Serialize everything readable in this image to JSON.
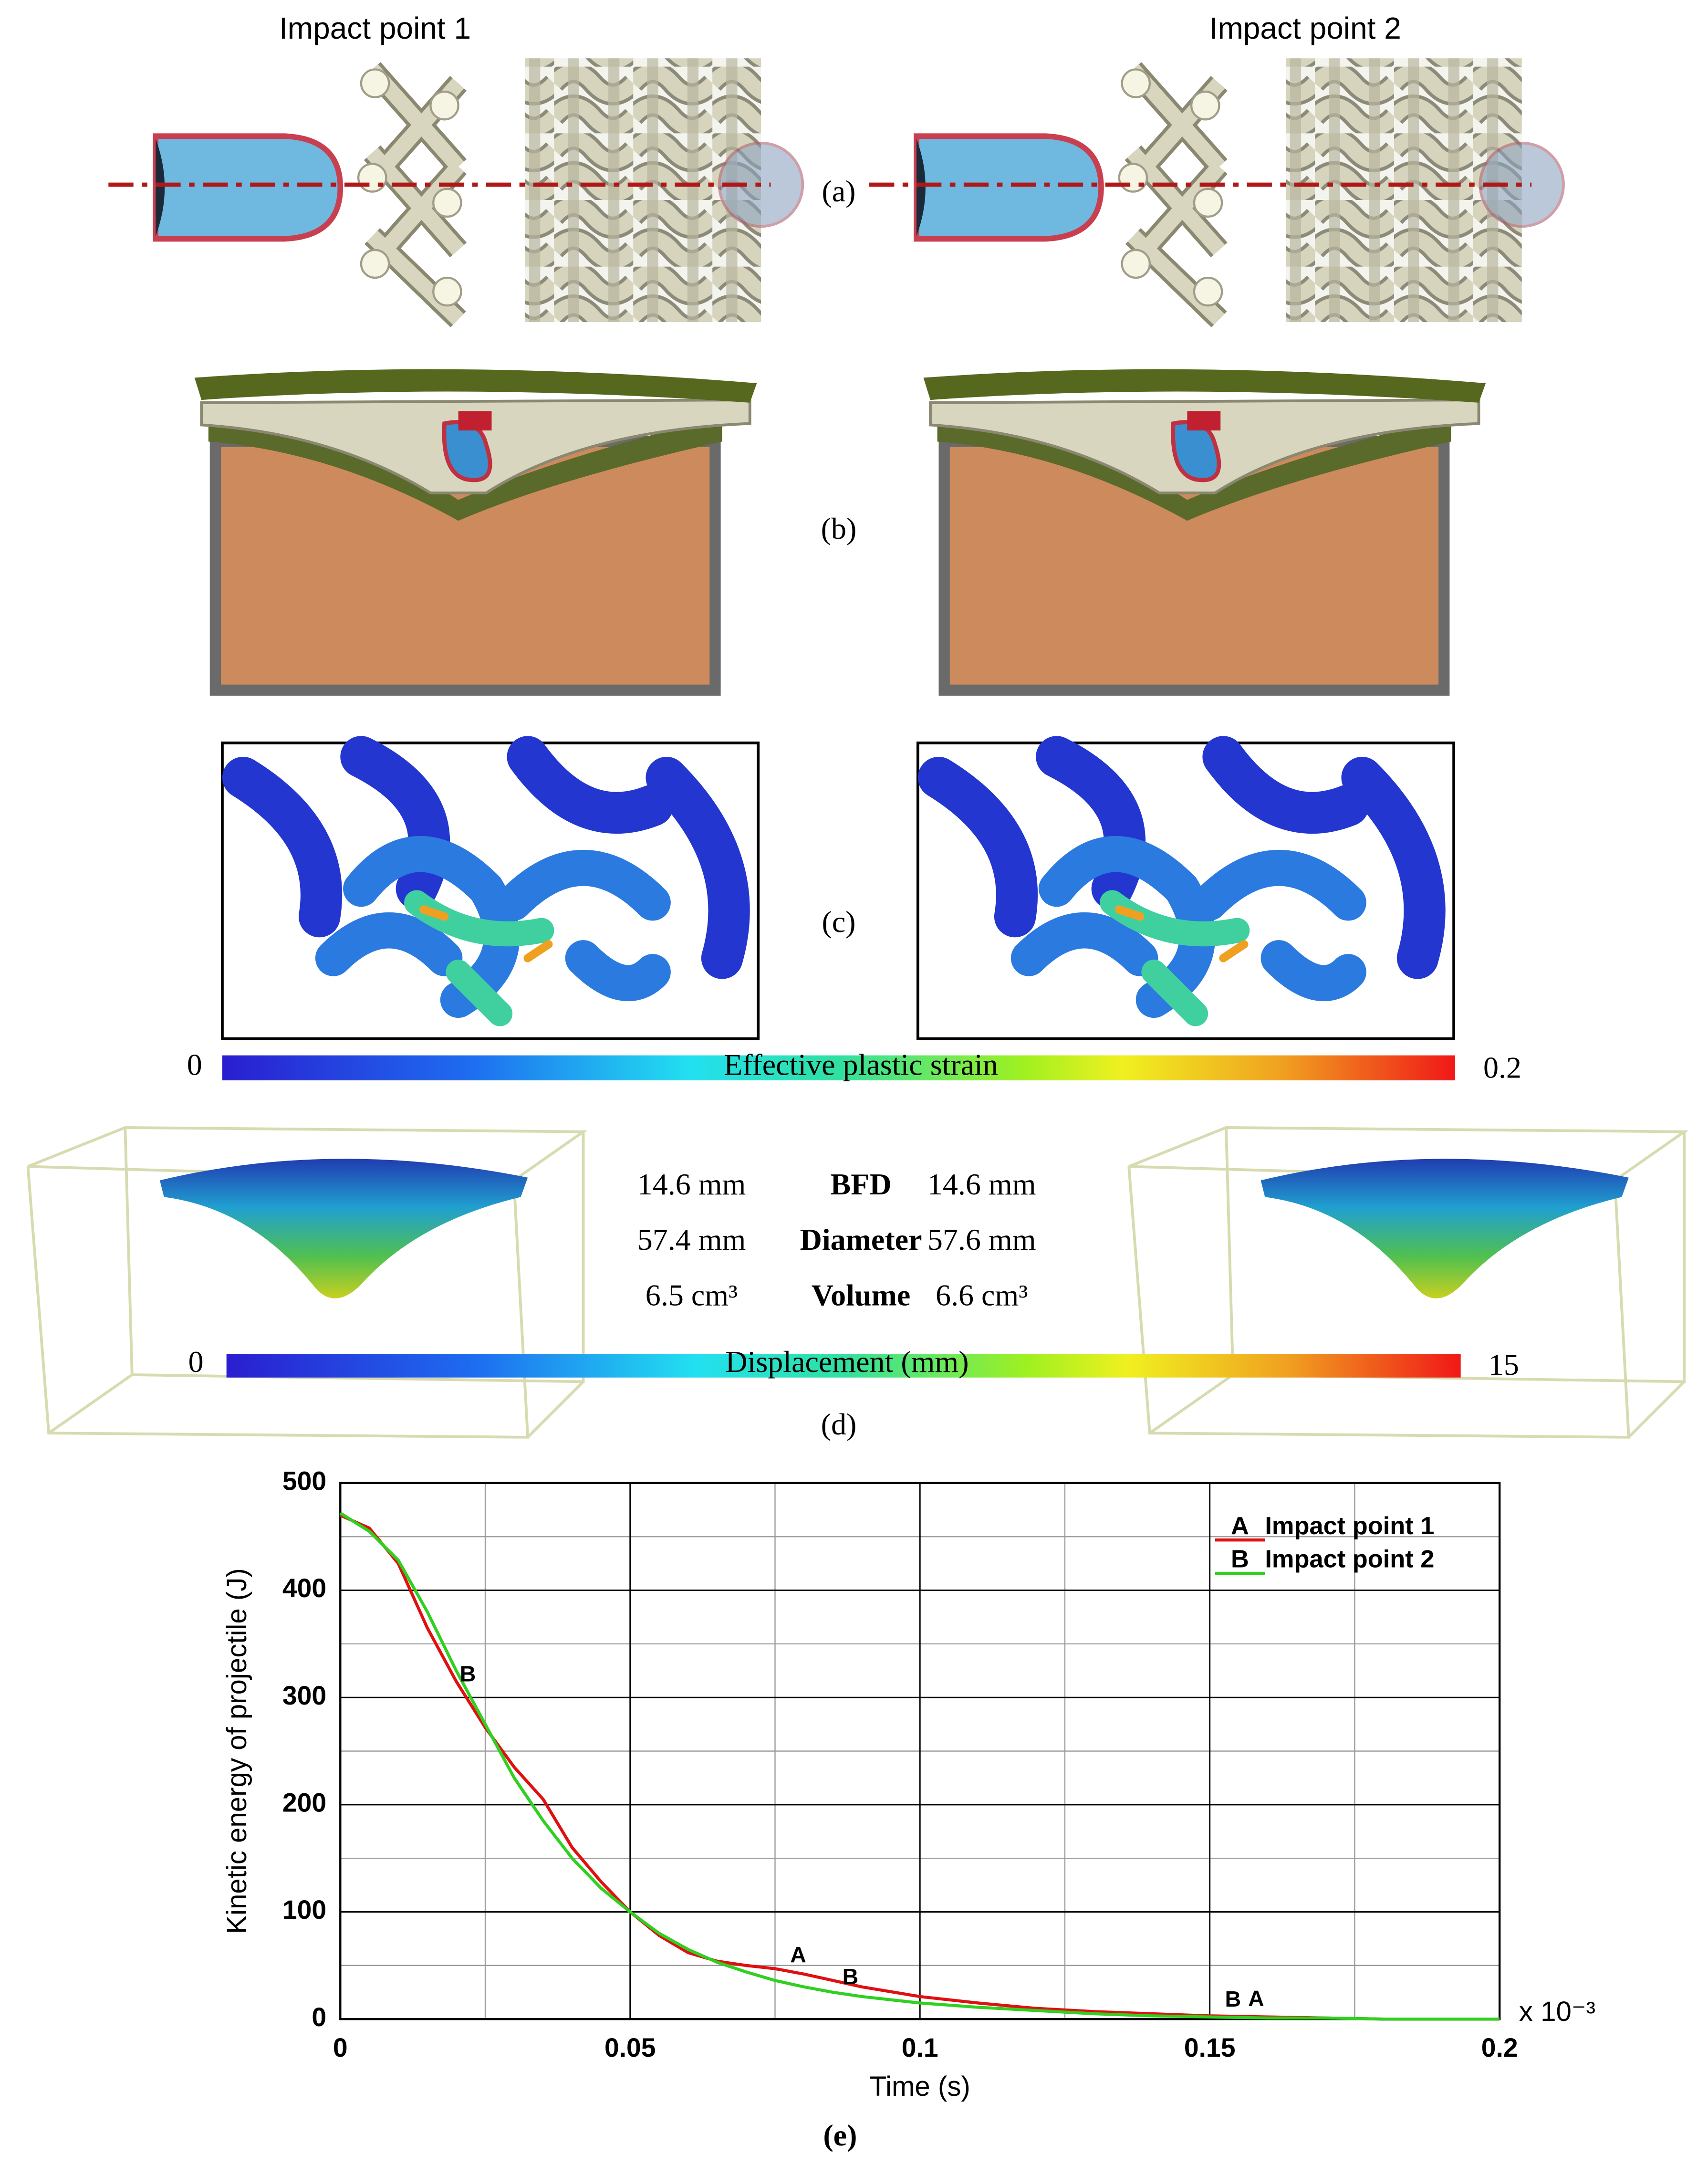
{
  "panel_a": {
    "labels": [
      "Impact point 1",
      "Impact point 2"
    ],
    "caption": "(a)"
  },
  "panel_b": {
    "caption": "(b)"
  },
  "panel_c": {
    "caption": "(c)",
    "colorbar": {
      "min": 0,
      "max": 0.2,
      "label": "Effective plastic strain"
    }
  },
  "panel_d": {
    "caption": "(d)",
    "table": [
      [
        "14.6 mm",
        "BFD",
        "14.6 mm"
      ],
      [
        "57.4 mm",
        "Diameter",
        "57.6 mm"
      ],
      [
        "6.5 cm³",
        "Volume",
        "6.6 cm³"
      ]
    ],
    "colorbar": {
      "min": 0,
      "max": 15,
      "label": "Displacement (mm)"
    }
  },
  "chart_data": {
    "type": "line",
    "caption": "(e)",
    "xlabel": "Time (s)",
    "ylabel": "Kinetic energy of projectile (J)",
    "x_multiplier": "x 10⁻³",
    "x": [
      0,
      0.005,
      0.01,
      0.015,
      0.02,
      0.025,
      0.03,
      0.035,
      0.04,
      0.045,
      0.05,
      0.055,
      0.06,
      0.065,
      0.07,
      0.075,
      0.08,
      0.085,
      0.09,
      0.1,
      0.11,
      0.12,
      0.13,
      0.14,
      0.15,
      0.16,
      0.17,
      0.18,
      0.2
    ],
    "series": [
      {
        "name": "Impact point 1",
        "marker": "A",
        "color": "#e01010",
        "values": [
          470,
          458,
          425,
          365,
          315,
          272,
          235,
          205,
          160,
          128,
          100,
          78,
          62,
          54,
          50,
          47,
          42,
          36,
          30,
          21,
          15,
          10,
          7,
          5,
          3,
          2,
          1,
          0,
          0
        ],
        "label_x": [
          0.079,
          0.158
        ]
      },
      {
        "name": "Impact point 2",
        "marker": "B",
        "color": "#30d020",
        "values": [
          472,
          455,
          428,
          380,
          325,
          275,
          225,
          185,
          150,
          122,
          100,
          80,
          65,
          53,
          44,
          36,
          30,
          25,
          21,
          15,
          11,
          8,
          5,
          3,
          2,
          1,
          1,
          0,
          0
        ],
        "label_x": [
          0.022,
          0.088,
          0.154
        ]
      }
    ],
    "xlim": [
      0,
      0.2
    ],
    "ylim": [
      0,
      500
    ],
    "xticks": [
      0,
      0.05,
      0.1,
      0.15,
      0.2
    ],
    "yticks": [
      0,
      100,
      200,
      300,
      400,
      500
    ],
    "minor_xticks": [
      0.025,
      0.075,
      0.125,
      0.175
    ],
    "minor_yticks": [
      50,
      150,
      250,
      350,
      450
    ],
    "grid": true,
    "legend": "upper right"
  }
}
